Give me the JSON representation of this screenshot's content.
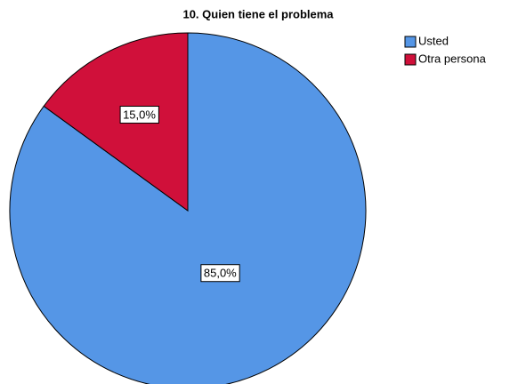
{
  "chart_data": {
    "type": "pie",
    "title": "10. Quien tiene el problema",
    "categories": [
      "Usted",
      "Otra persona"
    ],
    "values": [
      85,
      15
    ],
    "value_labels": [
      "85,0%",
      "15,0%"
    ],
    "colors": [
      "#5596e6",
      "#d0103a"
    ],
    "legend": "right"
  }
}
